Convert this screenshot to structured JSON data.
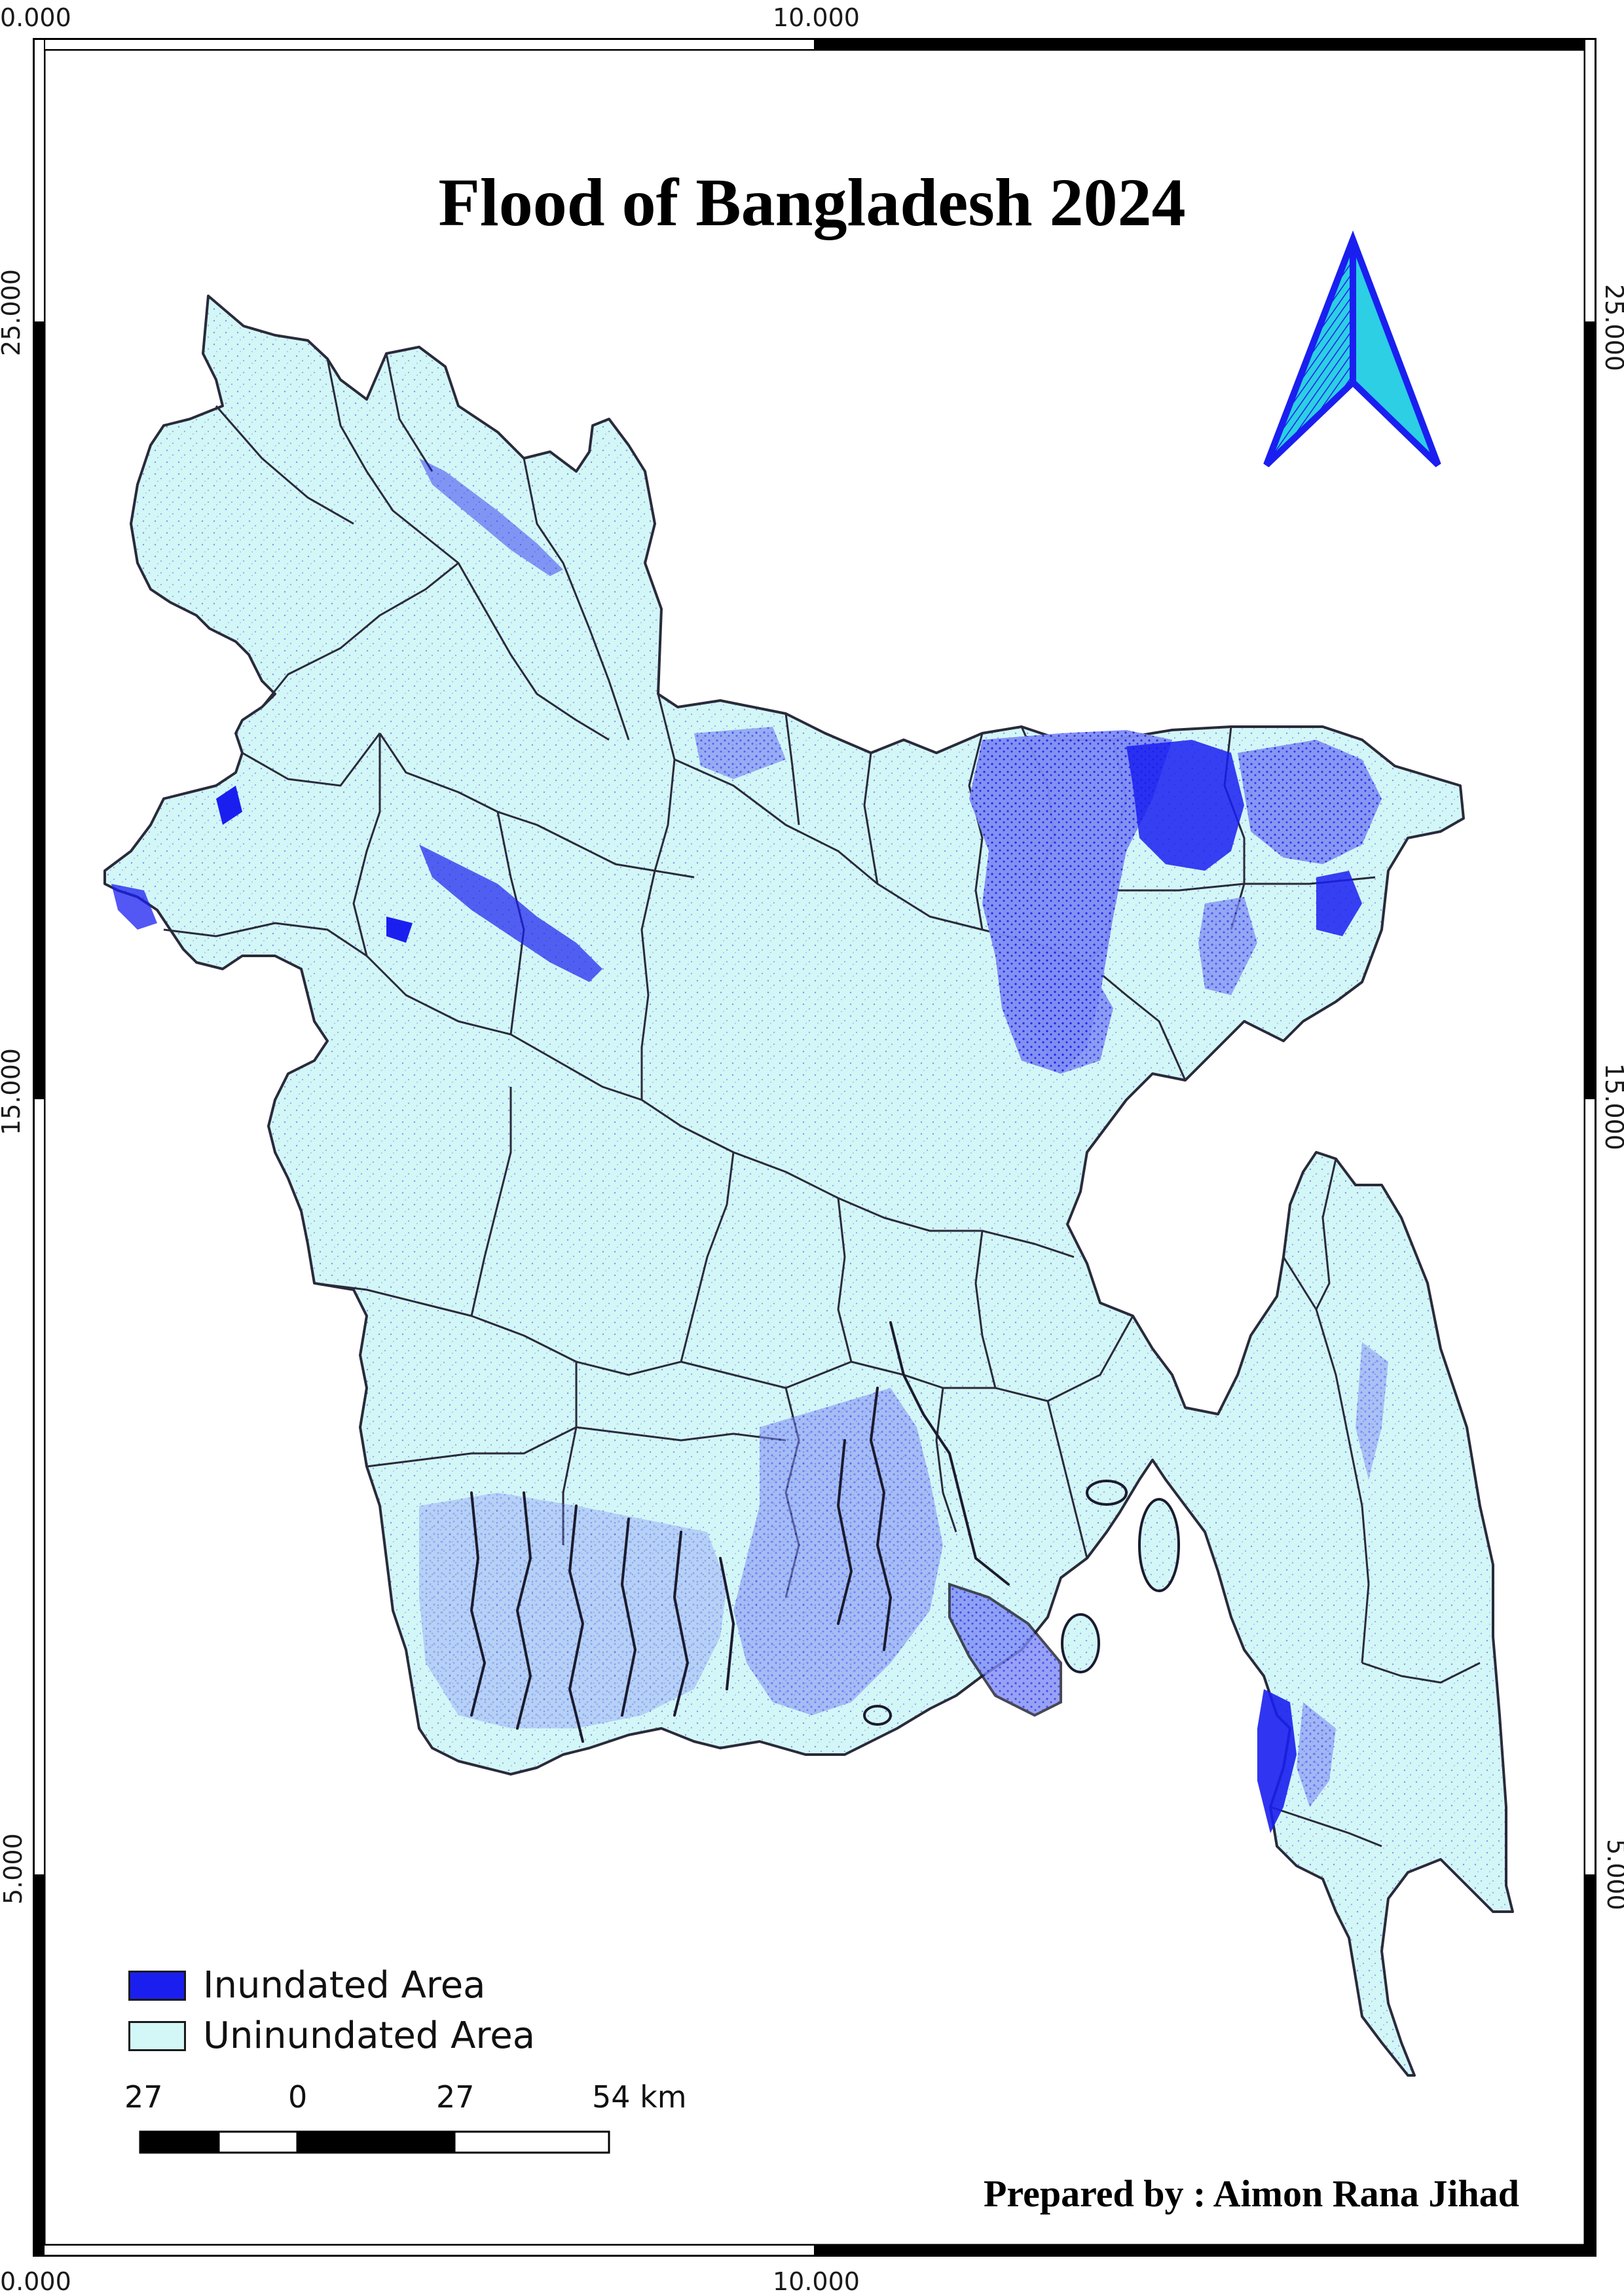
{
  "title": "Flood of Bangladesh 2024",
  "credit": "Prepared by : Aimon Rana Jihad",
  "grid_labels": {
    "top_left": "0.000",
    "top_mid": "10.000",
    "bottom_left": "0.000",
    "bottom_mid": "10.000",
    "left_upper": "25.000",
    "left_middle": "15.000",
    "left_lower": "5.000",
    "right_upper": "25.000",
    "right_middle": "15.000",
    "right_lower": "5.000"
  },
  "legend": [
    {
      "label": "Inundated Area",
      "color": "#1a1ff0"
    },
    {
      "label": "Uninundated Area",
      "color": "#d3f6f6"
    }
  ],
  "scale_bar": {
    "labels": [
      "27",
      "0",
      "27",
      "54 km"
    ]
  },
  "north_arrow": {
    "icon": "north-arrow-icon",
    "colors": {
      "outline": "#1a1ff0",
      "fill": "#2ccfe3"
    }
  },
  "colors": {
    "land": "#d3f6f6",
    "flood": "#1a1ff0",
    "boundary": "#2a2a3a",
    "frame": "#000000"
  }
}
